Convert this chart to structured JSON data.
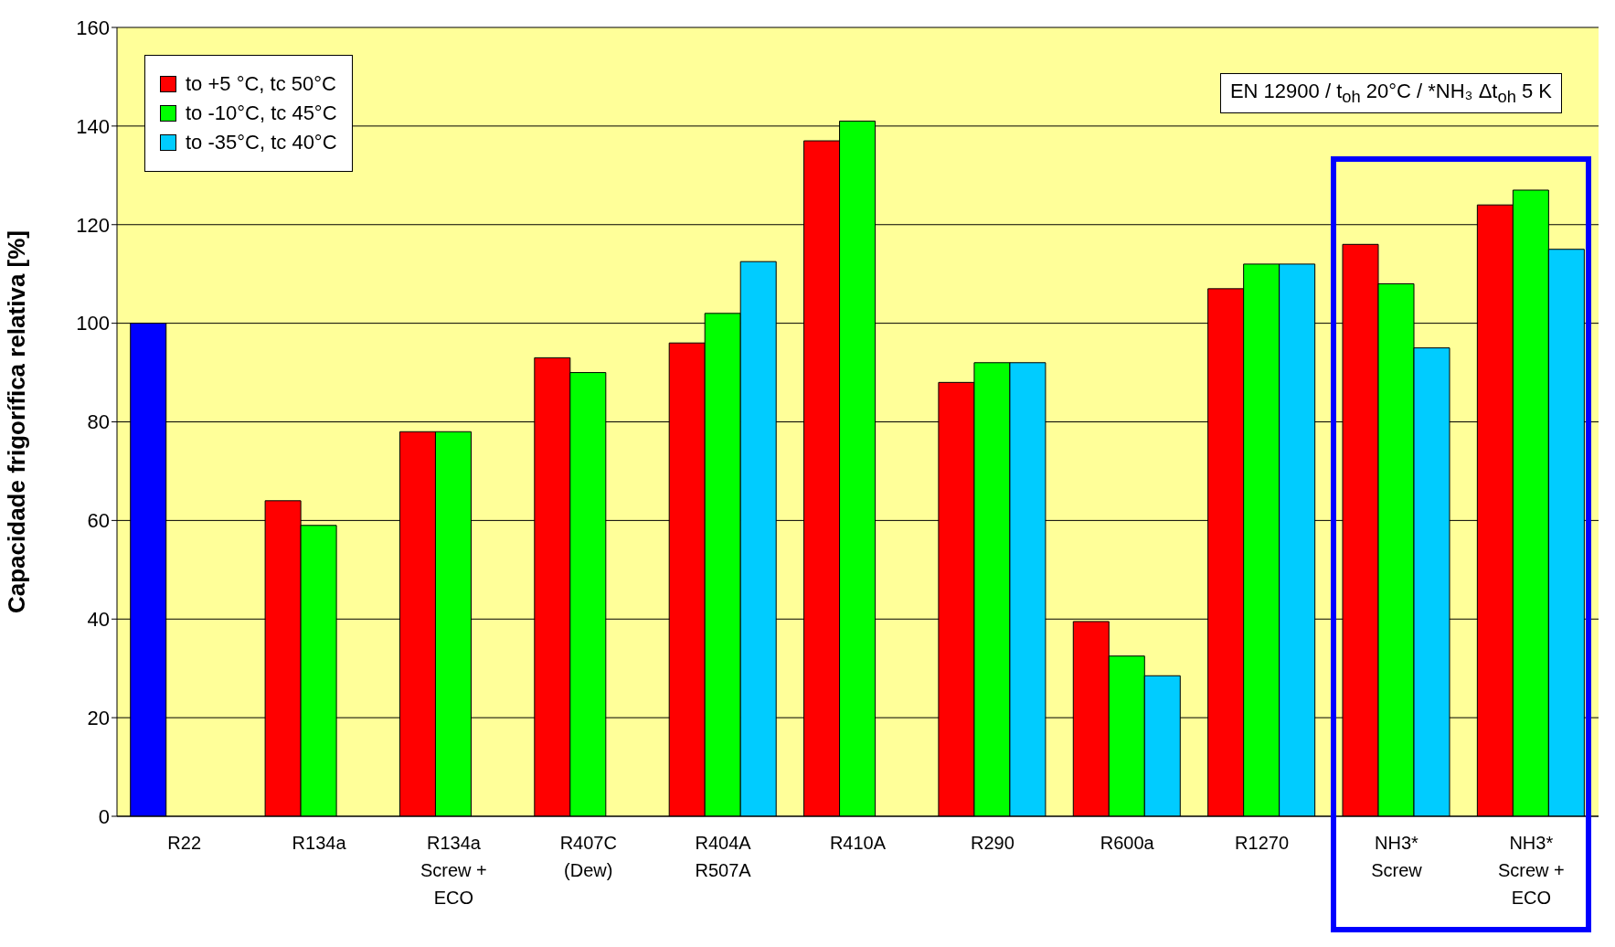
{
  "chart_data": {
    "type": "bar",
    "ylabel": "Capacidade frigorífica relativa [%]",
    "categories": [
      "R22",
      "R134a",
      "R134a\nScrew +\nECO",
      "R407C\n(Dew)",
      "R404A\nR507A",
      "R410A",
      "R290",
      "R600a",
      "R1270",
      "NH3*\nScrew",
      "NH3*\nScrew +\nECO"
    ],
    "series": [
      {
        "name": "to +5 °C, tc 50°C",
        "color": "#ff0000",
        "colors": [
          "#0000ff",
          "#ff0000",
          "#ff0000",
          "#ff0000",
          "#ff0000",
          "#ff0000",
          "#ff0000",
          "#ff0000",
          "#ff0000",
          "#ff0000",
          "#ff0000"
        ],
        "values": [
          100,
          64,
          78,
          93,
          96,
          137,
          88,
          39.5,
          107,
          116,
          124
        ]
      },
      {
        "name": "to -10°C, tc 45°C",
        "color": "#00ff00",
        "values": [
          null,
          59,
          78,
          90,
          102,
          141,
          92,
          32.5,
          112,
          108,
          127
        ]
      },
      {
        "name": "to -35°C, tc 40°C",
        "color": "#00ccff",
        "values": [
          null,
          null,
          null,
          null,
          112.5,
          null,
          92,
          28.5,
          112,
          95,
          115
        ]
      }
    ],
    "ylim": [
      0,
      160
    ],
    "yticks": [
      0,
      20,
      40,
      60,
      80,
      100,
      120,
      140,
      160
    ],
    "grid": "y",
    "legend": "top left",
    "annotations": [
      "EN 12900 / t$_{oh}$ 20°C / *NH₃ Δt$_{oh}$ 5 K"
    ]
  }
}
